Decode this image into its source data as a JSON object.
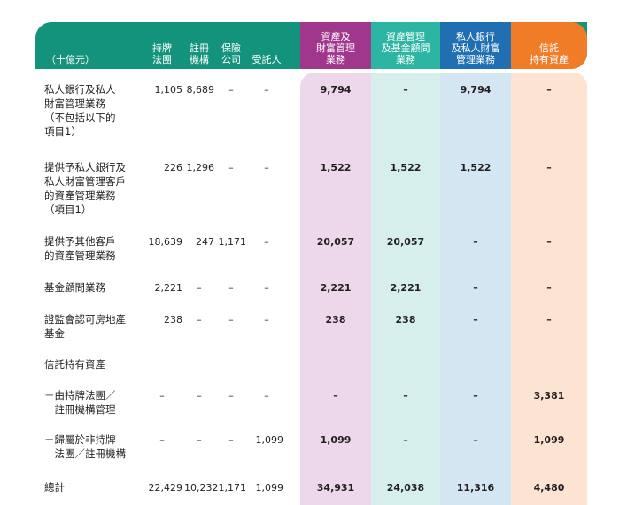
{
  "header": {
    "unit": "（十億元）",
    "cols": [
      {
        "lines": [
          "持牌",
          "法團"
        ]
      },
      {
        "lines": [
          "註冊",
          "機構"
        ]
      },
      {
        "lines": [
          "保險",
          "公司"
        ]
      },
      {
        "lines": [
          "受託人"
        ]
      },
      {
        "lines": [
          "資產及",
          "財富管理",
          "業務"
        ]
      },
      {
        "lines": [
          "資產管理",
          "及基金顧問",
          "業務"
        ]
      },
      {
        "lines": [
          "私人銀行",
          "及私人財富",
          "管理業務"
        ]
      },
      {
        "lines": [
          "信託",
          "持有資產"
        ]
      }
    ]
  },
  "colors": {
    "teal": "#14937c",
    "purple": "#a1368d",
    "aqua": "#2db5a3",
    "blue": "#1f6fb2",
    "orange": "#f07c28",
    "purple_light": "#ecd8ea",
    "aqua_light": "#d6efec",
    "blue_light": "#d3e6f2",
    "orange_light": "#fde3d2"
  },
  "rows": [
    {
      "label": [
        "私人銀行及私人",
        "財富管理業務",
        "（不包括以下的",
        "項目1）"
      ],
      "vals": [
        "1,105",
        "8,689",
        "–",
        "–",
        "9,794",
        "–",
        "9,794",
        "–"
      ]
    },
    {
      "label": [
        "提供予私人銀行及",
        "私人財富管理客戶",
        "的資產管理業務",
        "（項目1）"
      ],
      "vals": [
        "226",
        "1,296",
        "–",
        "–",
        "1,522",
        "1,522",
        "1,522",
        "–"
      ]
    },
    {
      "label": [
        "提供予其他客戶",
        "的資產管理業務"
      ],
      "vals": [
        "18,639",
        "247",
        "1,171",
        "–",
        "20,057",
        "20,057",
        "–",
        "–"
      ]
    },
    {
      "label": [
        "基金顧問業務"
      ],
      "vals": [
        "2,221",
        "–",
        "–",
        "–",
        "2,221",
        "2,221",
        "–",
        "–"
      ]
    },
    {
      "label": [
        "證監會認可房地產",
        "基金"
      ],
      "vals": [
        "238",
        "–",
        "–",
        "–",
        "238",
        "238",
        "–",
        "–"
      ]
    },
    {
      "label": [
        "信託持有資產"
      ],
      "vals": [
        "",
        "",
        "",
        "",
        "",
        "",
        "",
        ""
      ]
    },
    {
      "label": [
        "－由持牌法團／",
        "　註冊機構管理"
      ],
      "vals": [
        "–",
        "–",
        "–",
        "–",
        "–",
        "–",
        "–",
        "3,381"
      ]
    },
    {
      "label": [
        "－歸屬於非持牌",
        "　法團／註冊機構"
      ],
      "vals": [
        "–",
        "–",
        "–",
        "1,099",
        "1,099",
        "–",
        "–",
        "1,099"
      ]
    },
    {
      "label": [
        "總計"
      ],
      "vals": [
        "22,429",
        "10,232",
        "1,171",
        "1,099",
        "34,931",
        "24,038",
        "11,316",
        "4,480"
      ]
    }
  ]
}
